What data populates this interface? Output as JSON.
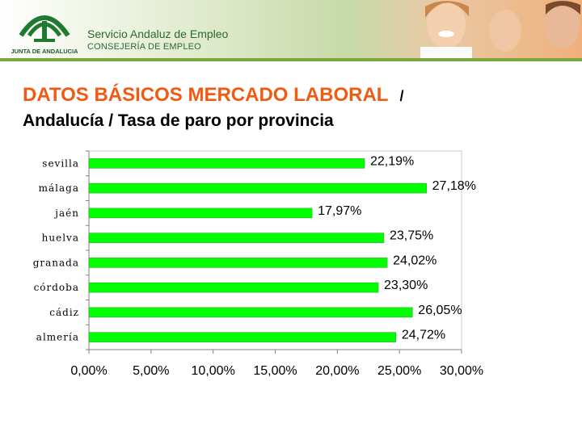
{
  "header": {
    "logo_text": "JUNTA DE ANDALUCIA",
    "org_name": "Servicio Andaluz de Empleo",
    "dept_name": "CONSEJERÍA DE EMPLEO"
  },
  "title": {
    "main": "DATOS BÁSICOS MERCADO LABORAL",
    "separator": "/",
    "subtitle": "Andalucía / Tasa de paro por provincia"
  },
  "colors": {
    "bar": "#00ff00",
    "title": "#f25a12",
    "banner_text": "#2b6a30"
  },
  "chart_data": {
    "type": "bar",
    "orientation": "horizontal",
    "categories": [
      "sevilla",
      "málaga",
      "jaén",
      "huelva",
      "granada",
      "córdoba",
      "cádiz",
      "almería"
    ],
    "values": [
      22.19,
      27.18,
      17.97,
      23.75,
      24.02,
      23.3,
      26.05,
      24.72
    ],
    "value_labels": [
      "22,19%",
      "27,18%",
      "17,97%",
      "23,75%",
      "24,02%",
      "23,30%",
      "26,05%",
      "24,72%"
    ],
    "xlim": [
      0,
      30
    ],
    "x_ticks": [
      0,
      5,
      10,
      15,
      20,
      25,
      30
    ],
    "x_tick_labels": [
      "0,00%",
      "5,00%",
      "10,00%",
      "15,00%",
      "20,00%",
      "25,00%",
      "30,00%"
    ],
    "grid": false,
    "legend": "none"
  }
}
